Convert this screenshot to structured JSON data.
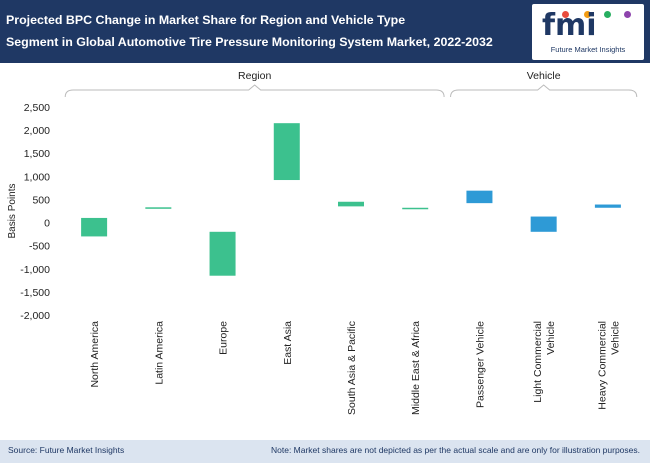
{
  "header": {
    "title_line1": "Projected BPC Change in Market Share for Region and Vehicle Type",
    "title_line2": "Segment in Global Automotive Tire Pressure Monitoring System Market, 2022-2032"
  },
  "logo": {
    "text": "fmi",
    "tagline": "Future Market Insights",
    "dot_colors": [
      "#e84c3d",
      "#f39c12",
      "#27ae60",
      "#8e44ad"
    ]
  },
  "footer": {
    "source": "Source: Future Market Insights",
    "note": "Note: Market shares are not depicted as per the actual scale and are only for illustration purposes."
  },
  "colors": {
    "region": "#3cc18e",
    "vehicle": "#2e9ad6",
    "axis_text": "#222222",
    "bracket": "#bbbbbb"
  },
  "chart_data": {
    "type": "waterfall",
    "title": "Projected BPC Change in Market Share for Region and Vehicle Type Segment in Global Automotive Tire Pressure Monitoring System Market, 2022-2032",
    "ylabel": "Basis Points",
    "ylim": [
      -2000,
      2500
    ],
    "yticks": [
      2500,
      2000,
      1500,
      1000,
      500,
      0,
      -500,
      -1000,
      -1500,
      -2000
    ],
    "ytick_labels": [
      "2,500",
      "2,000",
      "1,500",
      "1,000",
      "500",
      "0",
      "-500",
      "-1,000",
      "-1,500",
      "-2,000"
    ],
    "groups": [
      {
        "name": "Region",
        "start": 0,
        "end": 5
      },
      {
        "name": "Vehicle",
        "start": 6,
        "end": 8
      }
    ],
    "categories": [
      {
        "label": [
          "North America"
        ],
        "low": -300,
        "high": 100,
        "group": "Region"
      },
      {
        "label": [
          "Latin America"
        ],
        "low": 300,
        "high": 330,
        "group": "Region"
      },
      {
        "label": [
          "Europe"
        ],
        "low": -1150,
        "high": -200,
        "group": "Region"
      },
      {
        "label": [
          "East Asia"
        ],
        "low": 920,
        "high": 2150,
        "group": "Region"
      },
      {
        "label": [
          "South Asia & Pacific"
        ],
        "low": 350,
        "high": 450,
        "group": "Region"
      },
      {
        "label": [
          "Middle East & Africa"
        ],
        "low": 290,
        "high": 320,
        "group": "Region"
      },
      {
        "label": [
          "Passenger Vehicle"
        ],
        "low": 420,
        "high": 690,
        "group": "Vehicle"
      },
      {
        "label": [
          "Light Commercial",
          "Vehicle"
        ],
        "low": -200,
        "high": 130,
        "group": "Vehicle"
      },
      {
        "label": [
          "Heavy Commercial",
          "Vehicle"
        ],
        "low": 320,
        "high": 390,
        "group": "Vehicle"
      }
    ]
  }
}
